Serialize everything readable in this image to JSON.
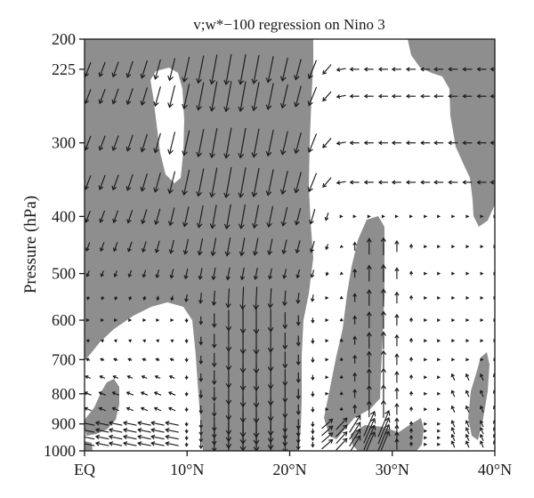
{
  "chart_data": {
    "type": "vector-field",
    "title": "v;w*−100 regression on Nino 3",
    "ylabel": "Pressure (hPa)",
    "xlabel": "",
    "x_ticks": [
      {
        "value": 0,
        "label": "EQ"
      },
      {
        "value": 10,
        "label": "10°N"
      },
      {
        "value": 20,
        "label": "20°N"
      },
      {
        "value": 30,
        "label": "30°N"
      },
      {
        "value": 40,
        "label": "40°N"
      }
    ],
    "y_ticks": [
      {
        "value": 200,
        "label": "200"
      },
      {
        "value": 225,
        "label": "225"
      },
      {
        "value": 300,
        "label": "300"
      },
      {
        "value": 400,
        "label": "400"
      },
      {
        "value": 500,
        "label": "500"
      },
      {
        "value": 600,
        "label": "600"
      },
      {
        "value": 700,
        "label": "700"
      },
      {
        "value": 800,
        "label": "800"
      },
      {
        "value": 900,
        "label": "900"
      },
      {
        "value": 1000,
        "label": "1000"
      }
    ],
    "xlim": [
      0,
      40
    ],
    "ylim": [
      1000,
      200
    ],
    "y_scale": "log",
    "shading": "gray = statistically significant region",
    "colors": {
      "shade": "#8e8e8e",
      "arrow": "#1a1a1a",
      "axis": "#1a1a1a"
    },
    "arrow_lat": [
      0,
      1.4,
      2.7,
      4.1,
      5.5,
      6.8,
      8.2,
      9.6,
      11,
      12.3,
      13.7,
      15.1,
      16.4,
      17.8,
      19.2,
      20.5,
      21.9,
      23.3,
      24.7,
      26,
      27.4,
      28.8,
      30.1,
      31.5,
      32.9,
      34.2,
      35.6,
      37,
      38.4,
      39.7
    ],
    "arrow_levels": [
      225,
      250,
      300,
      350,
      400,
      450,
      500,
      550,
      600,
      650,
      700,
      750,
      800,
      850,
      900,
      925,
      950,
      975
    ],
    "regimes": [
      {
        "region": "upper tropics 0-22N, 225-550 hPa",
        "v": "slightly southward",
        "w": "strong descent",
        "max_speed_at": "10-20N"
      },
      {
        "region": "10-20N, 550-1000 hPa",
        "v": "~0",
        "w": "strong descent"
      },
      {
        "region": "0-9N, 600-1000 hPa",
        "v": "southward near surface",
        "w": "weak"
      },
      {
        "region": "22-40N, 225-350 hPa",
        "v": "southward (return flow)",
        "w": "~0"
      },
      {
        "region": "24-33N, 400-1000 hPa",
        "v": "~0",
        "w": "ascent"
      },
      {
        "region": "22-28N, 900-1000 hPa",
        "v": "northward",
        "w": "ascent"
      }
    ]
  }
}
